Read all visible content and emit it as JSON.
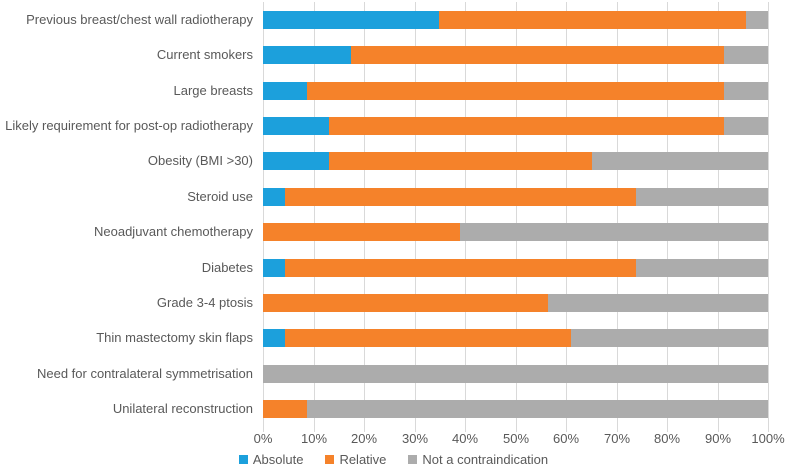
{
  "chart_data": {
    "type": "bar",
    "orientation": "horizontal",
    "stacked": true,
    "stacked_to_100_percent": true,
    "title": "",
    "xlabel": "",
    "ylabel": "",
    "xlim": [
      0,
      100
    ],
    "grid": "vertical",
    "legend_position": "bottom",
    "x_ticks": [
      "0%",
      "10%",
      "20%",
      "30%",
      "40%",
      "50%",
      "60%",
      "70%",
      "80%",
      "90%",
      "100%"
    ],
    "categories": [
      "Previous breast/chest wall radiotherapy",
      "Current smokers",
      "Large breasts",
      "Likely requirement for post-op radiotherapy",
      "Obesity (BMI >30)",
      "Steroid use",
      "Neoadjuvant chemotherapy",
      "Diabetes",
      "Grade 3-4 ptosis",
      "Thin mastectomy skin flaps",
      "Need for contralateral symmetrisation",
      "Unilateral reconstruction"
    ],
    "series": [
      {
        "name": "Absolute",
        "color": "#1ca0dc",
        "values": [
          34.8,
          17.4,
          8.7,
          13.0,
          13.0,
          4.3,
          0,
          4.3,
          0,
          4.3,
          0,
          0
        ]
      },
      {
        "name": "Relative",
        "color": "#f5822a",
        "values": [
          60.9,
          73.9,
          82.6,
          78.3,
          52.2,
          69.6,
          39.1,
          69.6,
          56.5,
          56.6,
          0,
          8.7
        ]
      },
      {
        "name": "Not a contraindication",
        "color": "#acacac",
        "values": [
          4.3,
          8.7,
          8.7,
          8.7,
          34.8,
          26.1,
          60.9,
          26.1,
          43.5,
          39.1,
          100,
          91.3
        ]
      }
    ],
    "colors": {
      "gridline": "#d9d9d9",
      "axis_text": "#595959",
      "background": "#ffffff"
    }
  },
  "legend": {
    "items": [
      {
        "label": "Absolute",
        "color": "#1ca0dc"
      },
      {
        "label": "Relative",
        "color": "#f5822a"
      },
      {
        "label": "Not a contraindication",
        "color": "#acacac"
      }
    ]
  }
}
